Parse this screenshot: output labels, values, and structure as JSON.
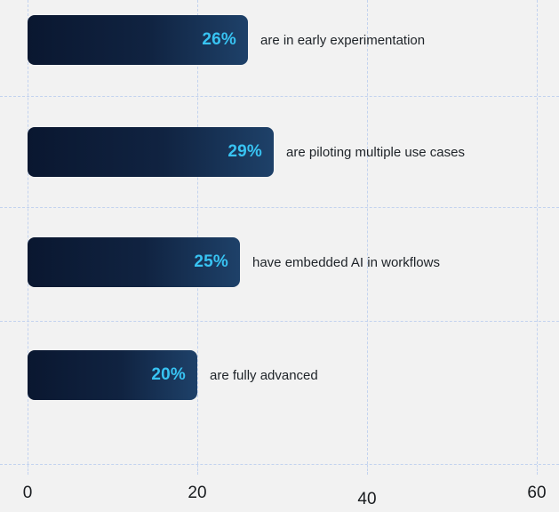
{
  "chart_data": {
    "type": "bar",
    "orientation": "horizontal",
    "title": "",
    "categories": [
      "are in early experimentation",
      "are piloting multiple use cases",
      "have embedded AI in workflows",
      "are fully advanced"
    ],
    "values": [
      26,
      29,
      25,
      20
    ],
    "value_labels": [
      "26%",
      "29%",
      "25%",
      "20%"
    ],
    "x_ticks": [
      0,
      20,
      40,
      60
    ],
    "x_tick_labels": [
      "0",
      "20",
      "40",
      "60"
    ],
    "xlim": [
      0,
      60
    ],
    "grid": "dashed vertical and horizontal",
    "legend": "none",
    "value_label_position": "inside-end",
    "category_label_position": "right-of-bar",
    "colors": {
      "background": "#f2f2f2",
      "bar_gradient_start": "#0a1730",
      "bar_gradient_end": "#1e4169",
      "value_label": "#38c3f2",
      "category_label": "#1e2328",
      "axis_label": "#191c1f",
      "gridline": "#c3d3ef"
    }
  }
}
